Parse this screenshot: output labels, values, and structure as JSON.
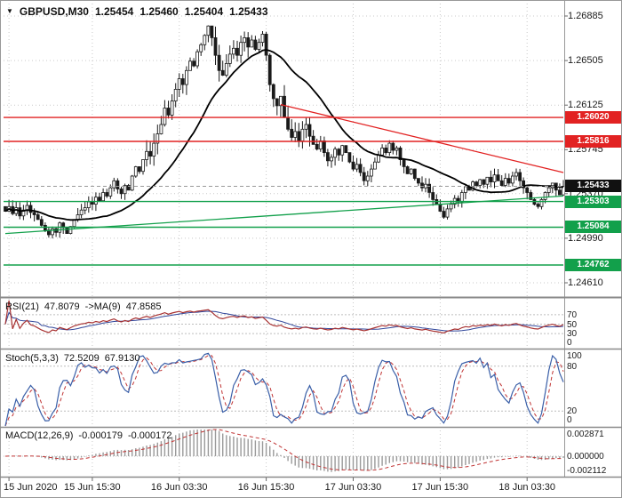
{
  "header": {
    "symbol": "GBPUSD,M30",
    "open": "1.25454",
    "high": "1.25460",
    "low": "1.25404",
    "close": "1.25433"
  },
  "colors": {
    "resistance": "#e22222",
    "support": "#12a04b",
    "current_tag": "#111111",
    "candle": "#1a1a1a",
    "ma_line": "#000000",
    "grid": "#c9c9c9",
    "rsi_line": "#a83232",
    "rsi_ma_line": "#31479b",
    "stoch_main": "#3a5fa8",
    "stoch_signal": "#c03434",
    "macd_hist": "#9a9a9a",
    "macd_signal": "#c03434",
    "trend_red": "#e22222",
    "trend_green": "#12a04b"
  },
  "chart_data": {
    "type": "candlestick",
    "symbol": "GBPUSD",
    "timeframe": "M30",
    "current_quote": {
      "open": 1.25454,
      "high": 1.2546,
      "low": 1.25404,
      "close": 1.25433
    },
    "y_axis": {
      "labels": [
        "1.26885",
        "1.26505",
        "1.26125",
        "1.25745",
        "1.25370",
        "1.24990",
        "1.24610"
      ],
      "min": 1.2461,
      "max": 1.26885
    },
    "x_axis": {
      "labels": [
        "15 Jun 2020",
        "15 Jun 15:30",
        "16 Jun 03:30",
        "16 Jun 15:30",
        "17 Jun 03:30",
        "17 Jun 15:30",
        "18 Jun 03:30"
      ],
      "tick_bars": [
        1,
        24,
        48,
        72,
        96,
        120,
        144
      ]
    },
    "ma_period": 22,
    "closes": [
      1.2522,
      1.2526,
      1.252,
      1.2525,
      1.2518,
      1.2523,
      1.2527,
      1.2521,
      1.2519,
      1.2515,
      1.251,
      1.2506,
      1.2502,
      1.2507,
      1.2504,
      1.2512,
      1.2508,
      1.2503,
      1.2509,
      1.2515,
      1.2519,
      1.2523,
      1.2525,
      1.253,
      1.2528,
      1.2534,
      1.2531,
      1.2538,
      1.2535,
      1.2542,
      1.2548,
      1.2541,
      1.2537,
      1.2544,
      1.254,
      1.2552,
      1.256,
      1.2556,
      1.2566,
      1.2573,
      1.2569,
      1.258,
      1.2588,
      1.2596,
      1.261,
      1.2604,
      1.2616,
      1.2626,
      1.2635,
      1.263,
      1.2642,
      1.265,
      1.2646,
      1.2658,
      1.2664,
      1.2672,
      1.268,
      1.267,
      1.2655,
      1.2642,
      1.2638,
      1.2648,
      1.2656,
      1.2661,
      1.2655,
      1.2666,
      1.267,
      1.2662,
      1.2668,
      1.266,
      1.2666,
      1.2673,
      1.2655,
      1.263,
      1.2618,
      1.2612,
      1.262,
      1.2602,
      1.2592,
      1.2585,
      1.259,
      1.2582,
      1.2592,
      1.2596,
      1.2586,
      1.2579,
      1.2575,
      1.2582,
      1.2572,
      1.2565,
      1.2568,
      1.2575,
      1.257,
      1.2578,
      1.2572,
      1.2564,
      1.2558,
      1.2562,
      1.2555,
      1.2548,
      1.2552,
      1.2558,
      1.2564,
      1.257,
      1.2576,
      1.2572,
      1.258,
      1.2574,
      1.2576,
      1.2566,
      1.256,
      1.2554,
      1.2558,
      1.255,
      1.2546,
      1.2542,
      1.2545,
      1.2538,
      1.2532,
      1.2528,
      1.2522,
      1.2517,
      1.2524,
      1.2528,
      1.2533,
      1.253,
      1.2538,
      1.2543,
      1.254,
      1.2547,
      1.2544,
      1.2549,
      1.2545,
      1.2551,
      1.2547,
      1.2553,
      1.2548,
      1.2544,
      1.255,
      1.2546,
      1.2552,
      1.2555,
      1.2548,
      1.2542,
      1.2538,
      1.2532,
      1.2528,
      1.2526,
      1.2532,
      1.2538,
      1.2542,
      1.2546,
      1.254,
      1.2536,
      1.25433
    ],
    "levels": [
      {
        "price": 1.2602,
        "label": "1.26020",
        "kind": "resistance"
      },
      {
        "price": 1.25816,
        "label": "1.25816",
        "kind": "resistance"
      },
      {
        "price": 1.25433,
        "label": "1.25433",
        "kind": "current"
      },
      {
        "price": 1.25303,
        "label": "1.25303",
        "kind": "support"
      },
      {
        "price": 1.25084,
        "label": "1.25084",
        "kind": "support"
      },
      {
        "price": 1.24762,
        "label": "1.24762",
        "kind": "support"
      }
    ],
    "trendlines": [
      {
        "kind": "resistance",
        "from_bar": 76,
        "from_price": 1.2613,
        "to_bar": 154,
        "to_price": 1.2555
      },
      {
        "kind": "support",
        "from_bar": 0,
        "from_price": 1.2503,
        "to_bar": 154,
        "to_price": 1.2535
      }
    ],
    "indicators": {
      "rsi": {
        "label": "RSI(21)",
        "value": "47.8079",
        "ma_label": "->MA(9)",
        "ma_value": "47.8585",
        "period": 21,
        "ma_period": 9,
        "levels": [
          70,
          50,
          30
        ],
        "range": [
          0,
          100
        ],
        "axis_labels": [
          {
            "v": 70,
            "text": "70"
          },
          {
            "v": 50,
            "text": "50"
          },
          {
            "v": 30,
            "text": "30"
          },
          {
            "v": 0,
            "text": "0"
          }
        ]
      },
      "stoch": {
        "label": "Stoch(5,3,3)",
        "value": "72.5209",
        "signal_value": "67.9130",
        "k": 5,
        "slow": 3,
        "d": 3,
        "levels": [
          80,
          20
        ],
        "range": [
          0,
          100
        ],
        "axis_labels": [
          {
            "v": 100,
            "text": "100"
          },
          {
            "v": 80,
            "text": "80"
          },
          {
            "v": 20,
            "text": "20"
          },
          {
            "v": 0,
            "text": "0"
          }
        ]
      },
      "macd": {
        "label": "MACD(12,26,9)",
        "value": "-0.000179",
        "signal_value": "-0.000172",
        "fast": 12,
        "slow": 26,
        "sig": 9,
        "range": [
          -0.002112,
          0.002871
        ],
        "axis_labels": [
          {
            "v": 0.002871,
            "text": "0.002871"
          },
          {
            "v": 0,
            "text": "0.000000"
          },
          {
            "v": -0.002112,
            "text": "-0.002112"
          }
        ]
      }
    }
  }
}
